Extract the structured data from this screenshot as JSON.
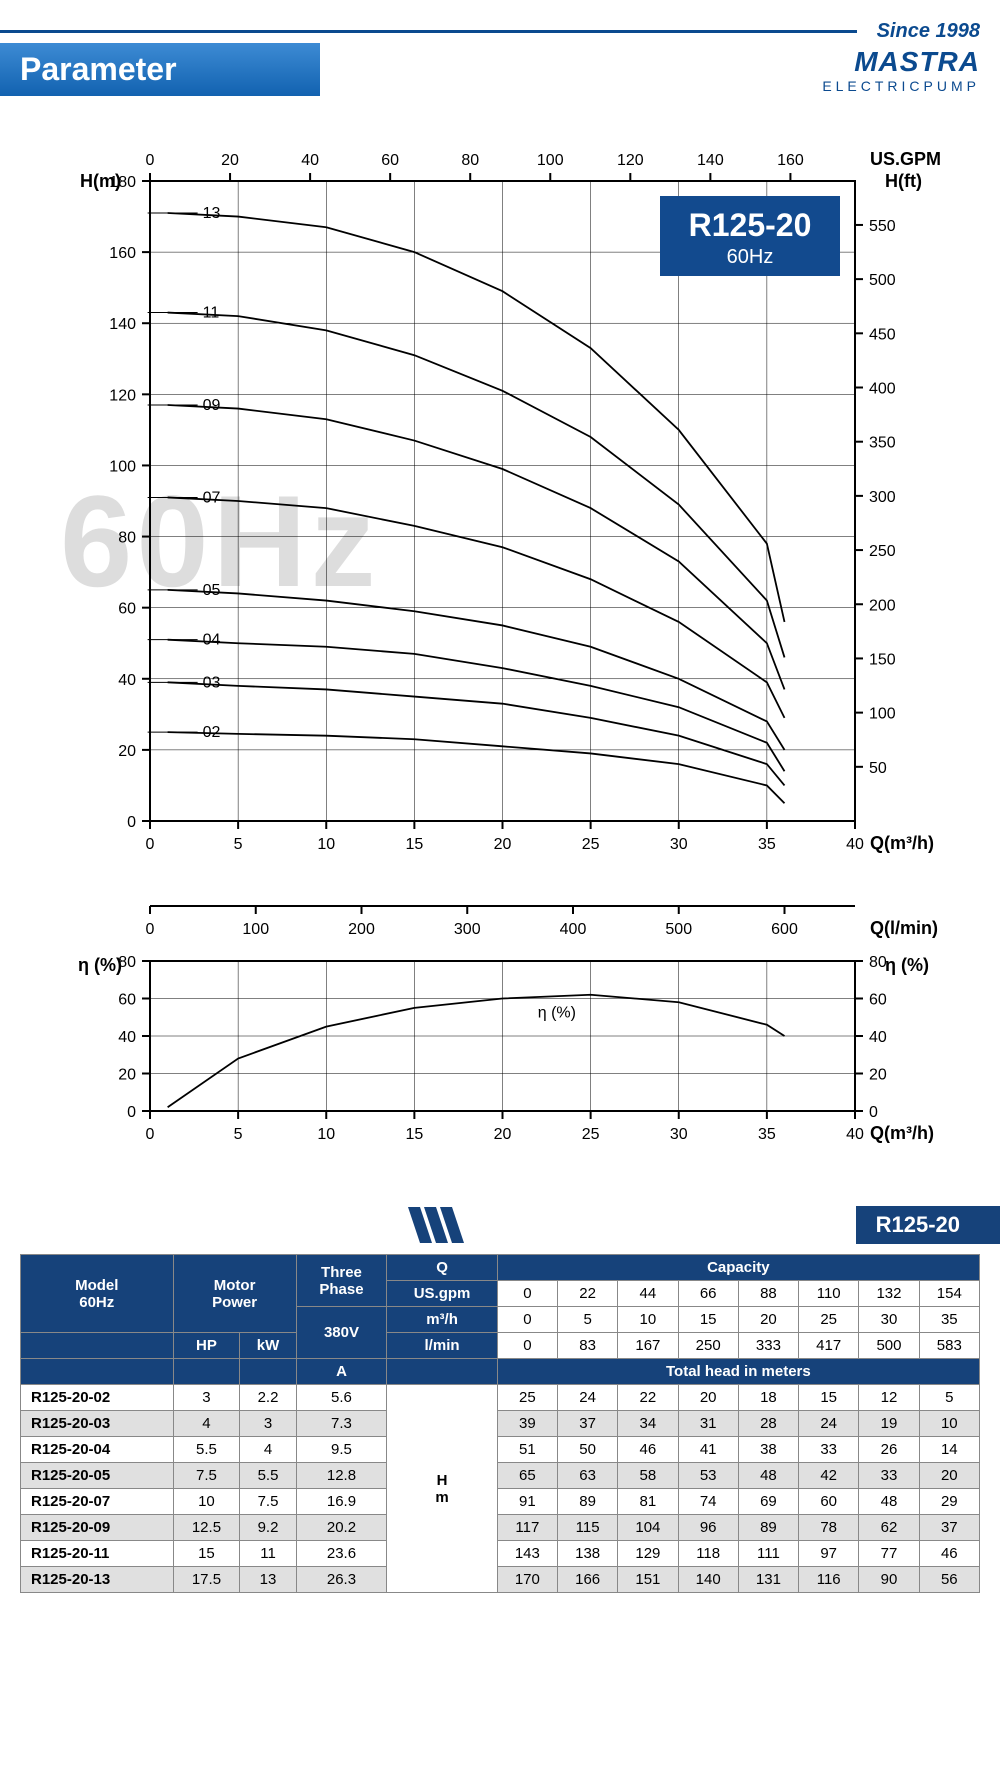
{
  "since": "Since 1998",
  "brand": {
    "name": "MASTRA",
    "sub": "ELECTRICPUMP"
  },
  "page_title": "Parameter",
  "watermark": "60Hz",
  "badge": {
    "title": "R125-20",
    "sub": "60Hz"
  },
  "section_tag": "R125-20",
  "main_chart": {
    "type": "line-multi",
    "x_axis_bottom": {
      "label": "Q(m³/h)",
      "min": 0,
      "max": 40,
      "step": 5
    },
    "x_axis_top": {
      "label": "US.GPM",
      "min": 0,
      "max": 160,
      "step": 20
    },
    "y_axis_left": {
      "label": "H(m)",
      "min": 0,
      "max": 180,
      "step": 20
    },
    "y_axis_right": {
      "label": "H(ft)",
      "min": 0,
      "max": 550,
      "step": 50
    },
    "lmin_axis": {
      "label": "Q(l/min)",
      "min": 0,
      "max": 600,
      "step": 100
    },
    "grid_color": "#000",
    "curve_color": "#000",
    "curve_width": 1.8,
    "curves": [
      {
        "label": "13",
        "points": [
          [
            1,
            171
          ],
          [
            5,
            170
          ],
          [
            10,
            167
          ],
          [
            15,
            160
          ],
          [
            20,
            149
          ],
          [
            25,
            133
          ],
          [
            30,
            110
          ],
          [
            35,
            78
          ],
          [
            36,
            56
          ]
        ]
      },
      {
        "label": "11",
        "points": [
          [
            1,
            143
          ],
          [
            5,
            142
          ],
          [
            10,
            138
          ],
          [
            15,
            131
          ],
          [
            20,
            121
          ],
          [
            25,
            108
          ],
          [
            30,
            89
          ],
          [
            35,
            62
          ],
          [
            36,
            46
          ]
        ]
      },
      {
        "label": "09",
        "points": [
          [
            1,
            117
          ],
          [
            5,
            116
          ],
          [
            10,
            113
          ],
          [
            15,
            107
          ],
          [
            20,
            99
          ],
          [
            25,
            88
          ],
          [
            30,
            73
          ],
          [
            35,
            50
          ],
          [
            36,
            37
          ]
        ]
      },
      {
        "label": "07",
        "points": [
          [
            1,
            91
          ],
          [
            5,
            90
          ],
          [
            10,
            88
          ],
          [
            15,
            83
          ],
          [
            20,
            77
          ],
          [
            25,
            68
          ],
          [
            30,
            56
          ],
          [
            35,
            39
          ],
          [
            36,
            29
          ]
        ]
      },
      {
        "label": "05",
        "points": [
          [
            1,
            65
          ],
          [
            5,
            64
          ],
          [
            10,
            62
          ],
          [
            15,
            59
          ],
          [
            20,
            55
          ],
          [
            25,
            49
          ],
          [
            30,
            40
          ],
          [
            35,
            28
          ],
          [
            36,
            20
          ]
        ]
      },
      {
        "label": "04",
        "points": [
          [
            1,
            51
          ],
          [
            5,
            50
          ],
          [
            10,
            49
          ],
          [
            15,
            47
          ],
          [
            20,
            43
          ],
          [
            25,
            38
          ],
          [
            30,
            32
          ],
          [
            35,
            22
          ],
          [
            36,
            14
          ]
        ]
      },
      {
        "label": "03",
        "points": [
          [
            1,
            39
          ],
          [
            5,
            38
          ],
          [
            10,
            37
          ],
          [
            15,
            35
          ],
          [
            20,
            33
          ],
          [
            25,
            29
          ],
          [
            30,
            24
          ],
          [
            35,
            16
          ],
          [
            36,
            10
          ]
        ]
      },
      {
        "label": "02",
        "points": [
          [
            1,
            25
          ],
          [
            5,
            24.5
          ],
          [
            10,
            24
          ],
          [
            15,
            23
          ],
          [
            20,
            21
          ],
          [
            25,
            19
          ],
          [
            30,
            16
          ],
          [
            35,
            10
          ],
          [
            36,
            5
          ]
        ]
      }
    ]
  },
  "eff_chart": {
    "type": "line",
    "x": {
      "min": 0,
      "max": 40,
      "step": 5,
      "label": "Q(m³/h)"
    },
    "y": {
      "min": 0,
      "max": 80,
      "step": 20,
      "label": "η (%)"
    },
    "curve_label": "η (%)",
    "points": [
      [
        1,
        2
      ],
      [
        5,
        28
      ],
      [
        10,
        45
      ],
      [
        15,
        55
      ],
      [
        20,
        60
      ],
      [
        25,
        62
      ],
      [
        30,
        58
      ],
      [
        35,
        46
      ],
      [
        36,
        40
      ]
    ]
  },
  "table": {
    "header": {
      "model": "Model\n60Hz",
      "motor": "Motor\nPower",
      "three": "Three\nPhase",
      "voltage": "380V",
      "q": "Q",
      "capacity": "Capacity",
      "hp": "HP",
      "kw": "kW",
      "a": "A",
      "usgpm": "US.gpm",
      "m3h": "m³/h",
      "lmin": "l/min",
      "total": "Total head in meters",
      "hm": "H\nm"
    },
    "flow_usgpm": [
      0,
      22,
      44,
      66,
      88,
      110,
      132,
      154
    ],
    "flow_m3h": [
      0,
      5,
      10,
      15,
      20,
      25,
      30,
      35
    ],
    "flow_lmin": [
      0,
      83,
      167,
      250,
      333,
      417,
      500,
      583
    ],
    "rows": [
      {
        "model": "R125-20-02",
        "hp": 3,
        "kw": 2.2,
        "a": 5.6,
        "heads": [
          25,
          24,
          22,
          20,
          18,
          15,
          12,
          5
        ]
      },
      {
        "model": "R125-20-03",
        "hp": 4,
        "kw": 3,
        "a": 7.3,
        "heads": [
          39,
          37,
          34,
          31,
          28,
          24,
          19,
          10
        ]
      },
      {
        "model": "R125-20-04",
        "hp": 5.5,
        "kw": 4,
        "a": 9.5,
        "heads": [
          51,
          50,
          46,
          41,
          38,
          33,
          26,
          14
        ]
      },
      {
        "model": "R125-20-05",
        "hp": 7.5,
        "kw": 5.5,
        "a": 12.8,
        "heads": [
          65,
          63,
          58,
          53,
          48,
          42,
          33,
          20
        ]
      },
      {
        "model": "R125-20-07",
        "hp": 10,
        "kw": 7.5,
        "a": 16.9,
        "heads": [
          91,
          89,
          81,
          74,
          69,
          60,
          48,
          29
        ]
      },
      {
        "model": "R125-20-09",
        "hp": 12.5,
        "kw": 9.2,
        "a": 20.2,
        "heads": [
          117,
          115,
          104,
          96,
          89,
          78,
          62,
          37
        ]
      },
      {
        "model": "R125-20-11",
        "hp": 15,
        "kw": 11,
        "a": 23.6,
        "heads": [
          143,
          138,
          129,
          118,
          111,
          97,
          77,
          46
        ]
      },
      {
        "model": "R125-20-13",
        "hp": 17.5,
        "kw": 13,
        "a": 26.3,
        "heads": [
          170,
          166,
          151,
          140,
          131,
          116,
          90,
          56
        ]
      }
    ]
  },
  "colors": {
    "blue_dark": "#16427a",
    "blue_grad_top": "#3d8bd4",
    "blue_grad_bot": "#1262b0",
    "badge": "#124a8e"
  }
}
